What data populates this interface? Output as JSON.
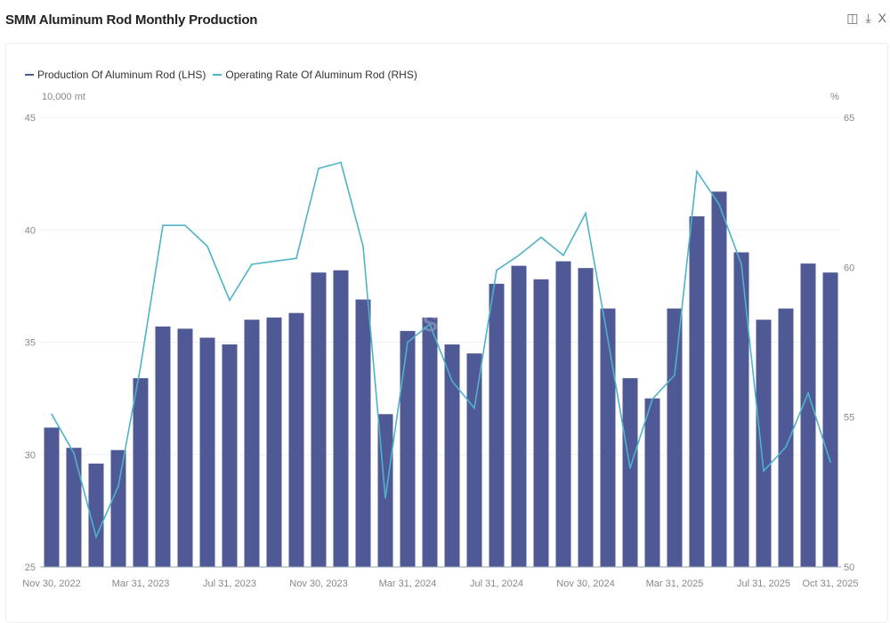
{
  "header": {
    "title": "SMM Aluminum Rod Monthly Production",
    "icons": [
      "database-export-icon",
      "download-icon",
      "close-icon"
    ],
    "close_label": "X"
  },
  "watermark": "SMM",
  "chart_data": {
    "type": "bar+line",
    "title": "SMM Aluminum Rod Monthly Production",
    "legend_position": "top-left",
    "grid": true,
    "y_left": {
      "label": "10,000 mt",
      "range": [
        25,
        45
      ],
      "ticks": [
        "25",
        "30",
        "35",
        "40",
        "45"
      ]
    },
    "y_right": {
      "label": "%",
      "range": [
        50,
        65
      ],
      "ticks": [
        "50",
        "55",
        "60",
        "65"
      ]
    },
    "x_tick_labels": [
      "Nov 30, 2022",
      "Mar 31, 2023",
      "Jul 31, 2023",
      "Nov 30, 2023",
      "Mar 31, 2024",
      "Jul 31, 2024",
      "Nov 30, 2024",
      "Mar 31, 2025",
      "Jul 31, 2025",
      "Oct 31, 2025"
    ],
    "x_tick_index": [
      0,
      4,
      8,
      12,
      16,
      20,
      24,
      28,
      32,
      35
    ],
    "categories": [
      "2022-11",
      "2022-12",
      "2023-01",
      "2023-02",
      "2023-03",
      "2023-04",
      "2023-05",
      "2023-06",
      "2023-07",
      "2023-08",
      "2023-09",
      "2023-10",
      "2023-11",
      "2023-12",
      "2024-01",
      "2024-02",
      "2024-03",
      "2024-04",
      "2024-05",
      "2024-06",
      "2024-07",
      "2024-08",
      "2024-09",
      "2024-10",
      "2024-11",
      "2024-12",
      "2025-01",
      "2025-02",
      "2025-03",
      "2025-04",
      "2025-05",
      "2025-06",
      "2025-07",
      "2025-08",
      "2025-09",
      "2025-10"
    ],
    "series": [
      {
        "name": "Production Of Aluminum Rod (LHS)",
        "type": "bar",
        "axis": "left",
        "color": "#4e5996",
        "values": [
          31.2,
          30.3,
          29.6,
          30.2,
          33.4,
          35.7,
          35.6,
          35.2,
          34.9,
          36.0,
          36.1,
          36.3,
          38.1,
          38.2,
          36.9,
          31.8,
          35.5,
          36.1,
          34.9,
          34.5,
          37.6,
          38.4,
          37.8,
          38.6,
          38.3,
          36.5,
          33.4,
          32.5,
          36.5,
          40.6,
          41.7,
          39.0,
          36.0,
          36.5,
          38.5,
          38.1
        ]
      },
      {
        "name": "Operating Rate Of Aluminum Rod (RHS)",
        "type": "line",
        "axis": "right",
        "color": "#4fb3c8",
        "values": [
          55.1,
          53.8,
          51.0,
          52.7,
          56.7,
          61.4,
          61.4,
          60.7,
          58.9,
          60.1,
          60.2,
          60.3,
          63.3,
          63.5,
          60.7,
          52.3,
          57.5,
          58.1,
          56.2,
          55.3,
          59.9,
          60.4,
          61.0,
          60.4,
          61.8,
          57.6,
          53.3,
          55.6,
          56.4,
          63.2,
          62.1,
          60.1,
          53.2,
          54.0,
          55.8,
          53.5
        ]
      }
    ]
  }
}
